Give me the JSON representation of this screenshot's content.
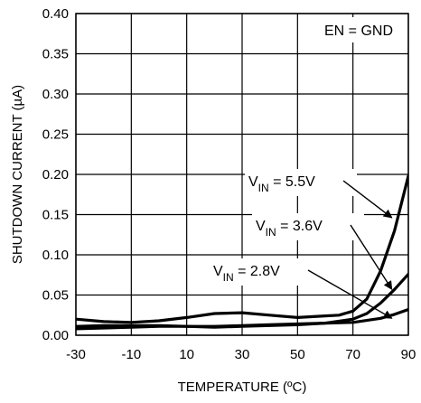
{
  "chart_data": {
    "type": "line",
    "xlabel": "TEMPERATURE (ºC)",
    "ylabel": "SHUTDOWN CURRENT (µA)",
    "xlim": [
      -30,
      90
    ],
    "ylim": [
      0,
      0.4
    ],
    "x_ticks": [
      "-30",
      "-10",
      "10",
      "30",
      "50",
      "70",
      "90"
    ],
    "y_ticks": [
      "0.00",
      "0.05",
      "0.10",
      "0.15",
      "0.20",
      "0.25",
      "0.30",
      "0.35",
      "0.40"
    ],
    "grid": true,
    "condition_label": "EN = GND",
    "series": [
      {
        "name": "VIN = 5.5V",
        "label_parts": [
          "V",
          "IN",
          " = 5.5V"
        ],
        "color": "#000000",
        "x": [
          -30,
          -20,
          -10,
          0,
          10,
          20,
          30,
          40,
          50,
          60,
          65,
          70,
          75,
          80,
          85,
          90
        ],
        "y": [
          0.02,
          0.017,
          0.016,
          0.018,
          0.022,
          0.027,
          0.028,
          0.025,
          0.022,
          0.024,
          0.025,
          0.03,
          0.045,
          0.08,
          0.13,
          0.198
        ]
      },
      {
        "name": "VIN = 3.6V",
        "label_parts": [
          "V",
          "IN",
          " = 3.6V"
        ],
        "color": "#000000",
        "x": [
          -30,
          -20,
          -10,
          0,
          10,
          20,
          30,
          40,
          50,
          60,
          70,
          75,
          80,
          85,
          90
        ],
        "y": [
          0.011,
          0.012,
          0.012,
          0.012,
          0.011,
          0.01,
          0.011,
          0.012,
          0.013,
          0.015,
          0.02,
          0.027,
          0.04,
          0.057,
          0.076
        ]
      },
      {
        "name": "VIN = 2.8V",
        "label_parts": [
          "V",
          "IN",
          " = 2.8V"
        ],
        "color": "#000000",
        "x": [
          -30,
          -20,
          -10,
          0,
          10,
          20,
          30,
          40,
          50,
          60,
          70,
          80,
          85,
          90
        ],
        "y": [
          0.008,
          0.009,
          0.01,
          0.011,
          0.011,
          0.011,
          0.012,
          0.013,
          0.014,
          0.015,
          0.016,
          0.021,
          0.026,
          0.032
        ]
      }
    ]
  }
}
